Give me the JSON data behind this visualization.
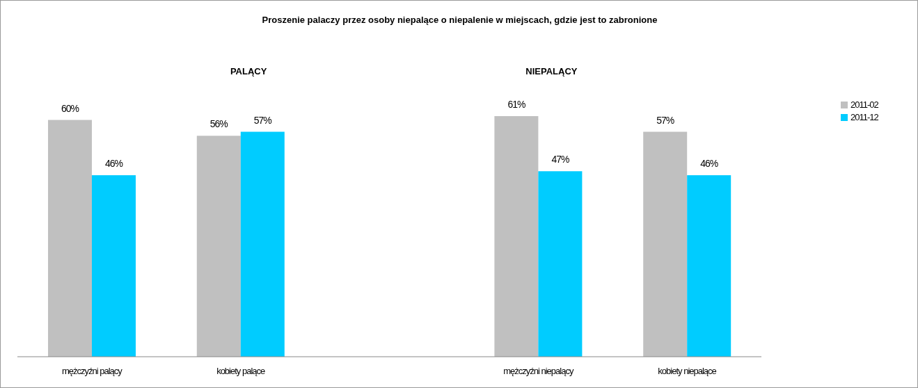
{
  "chart_data": {
    "type": "bar",
    "title": "Proszenie palaczy przez osoby niepalące o niepalenie w miejscach, gdzie jest to zabronione",
    "annotations": [
      "PALĄCY",
      "NIEPALĄCY"
    ],
    "categories": [
      "mężczyźni palący",
      "kobiety palące",
      null,
      "mężczyźni niepalący",
      "kobiety niepalące"
    ],
    "legend": "right",
    "series": [
      {
        "name": "2011-02",
        "color": "#c0c0c0",
        "values": [
          60,
          56,
          null,
          61,
          57
        ],
        "value_labels": [
          "60%",
          "56%",
          null,
          "61%",
          "57%"
        ]
      },
      {
        "name": "2011-12",
        "color": "#00ccff",
        "values": [
          46,
          57,
          null,
          47,
          46
        ],
        "value_labels": [
          "46%",
          "57%",
          null,
          "47%",
          "46%"
        ]
      }
    ]
  }
}
